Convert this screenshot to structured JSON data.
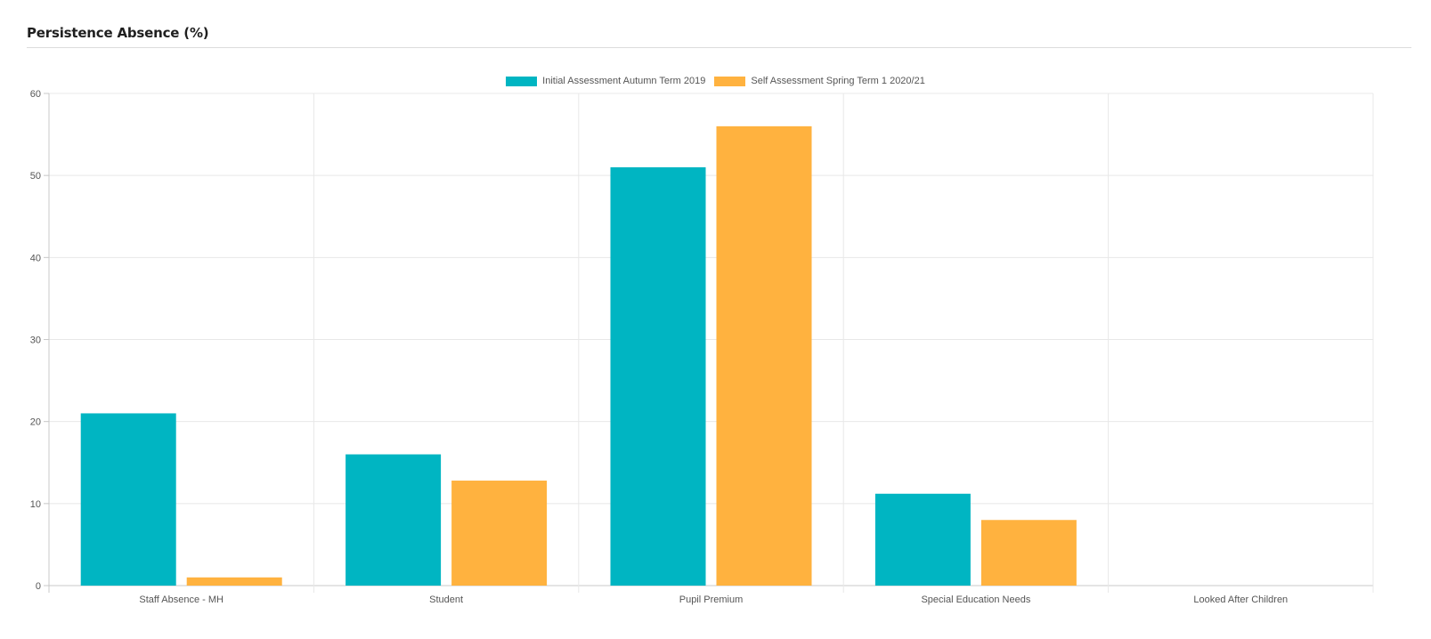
{
  "panel": {
    "title": "Persistence Absence (%)"
  },
  "colors": {
    "series1": "#00b5c2",
    "series2": "#ffb23f",
    "grid": "#e8e8e8",
    "axis": "#c8c8c8"
  },
  "chart_data": {
    "type": "bar",
    "categories": [
      "Staff Absence - MH",
      "Student",
      "Pupil Premium",
      "Special Education Needs",
      "Looked After Children"
    ],
    "series": [
      {
        "name": "Initial Assessment Autumn Term 2019",
        "values": [
          21,
          16,
          51,
          11.2,
          0
        ]
      },
      {
        "name": "Self Assessment Spring Term 1 2020/21",
        "values": [
          1,
          12.8,
          56,
          8,
          0
        ]
      }
    ],
    "yticks": [
      "0",
      "10",
      "20",
      "30",
      "40",
      "50",
      "60"
    ],
    "ylim": [
      0,
      60
    ],
    "grid": true,
    "legend": "top-center"
  }
}
